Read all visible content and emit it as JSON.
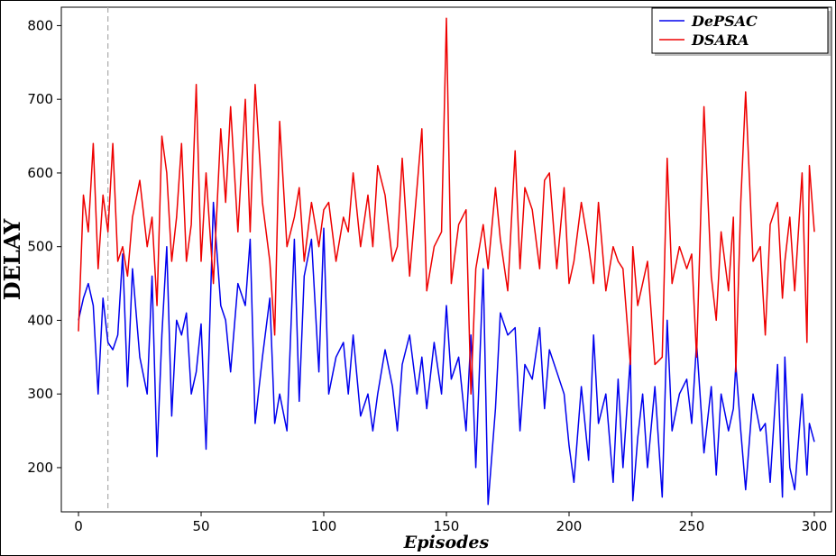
{
  "chart_data": {
    "type": "line",
    "xlabel": "Episodes",
    "ylabel": "DELAY",
    "xlim": [
      -7,
      307
    ],
    "ylim": [
      140,
      825
    ],
    "xticks": [
      0,
      50,
      100,
      150,
      200,
      250,
      300
    ],
    "yticks": [
      200,
      300,
      400,
      500,
      600,
      700,
      800
    ],
    "grid": false,
    "legend_position": "top-right",
    "reference_line": {
      "x": 12,
      "style": "dashed",
      "color": "#aaaaaa"
    },
    "series": [
      {
        "name": "DePSAC",
        "color": "#0000ee",
        "x": [
          0,
          2,
          4,
          6,
          8,
          10,
          12,
          14,
          16,
          18,
          20,
          22,
          25,
          28,
          30,
          32,
          34,
          36,
          38,
          40,
          42,
          44,
          46,
          48,
          50,
          52,
          55,
          58,
          60,
          62,
          65,
          68,
          70,
          72,
          75,
          78,
          80,
          82,
          85,
          88,
          90,
          92,
          95,
          98,
          100,
          102,
          105,
          108,
          110,
          112,
          115,
          118,
          120,
          122,
          125,
          128,
          130,
          132,
          135,
          138,
          140,
          142,
          145,
          148,
          150,
          152,
          155,
          158,
          160,
          162,
          165,
          167,
          170,
          172,
          175,
          178,
          180,
          182,
          185,
          188,
          190,
          192,
          195,
          198,
          200,
          202,
          205,
          208,
          210,
          212,
          215,
          218,
          220,
          222,
          225,
          226,
          228,
          230,
          232,
          235,
          238,
          240,
          242,
          245,
          248,
          250,
          252,
          255,
          258,
          260,
          262,
          265,
          267,
          268,
          270,
          272,
          275,
          278,
          280,
          282,
          285,
          287,
          288,
          290,
          292,
          295,
          297,
          298,
          300
        ],
        "y": [
          400,
          430,
          450,
          420,
          300,
          430,
          370,
          360,
          380,
          490,
          310,
          470,
          350,
          300,
          460,
          215,
          380,
          500,
          270,
          400,
          380,
          410,
          300,
          330,
          395,
          225,
          560,
          420,
          400,
          330,
          450,
          420,
          510,
          260,
          350,
          430,
          260,
          300,
          250,
          510,
          290,
          460,
          510,
          330,
          525,
          300,
          350,
          370,
          300,
          380,
          270,
          300,
          250,
          300,
          360,
          310,
          250,
          340,
          380,
          300,
          350,
          280,
          370,
          300,
          420,
          320,
          350,
          250,
          380,
          200,
          470,
          150,
          280,
          410,
          380,
          390,
          250,
          340,
          320,
          390,
          280,
          360,
          330,
          300,
          230,
          180,
          310,
          210,
          380,
          260,
          300,
          180,
          320,
          200,
          350,
          155,
          240,
          300,
          200,
          310,
          160,
          400,
          250,
          300,
          320,
          260,
          370,
          220,
          310,
          190,
          300,
          250,
          280,
          340,
          250,
          170,
          300,
          250,
          260,
          180,
          340,
          160,
          350,
          200,
          170,
          300,
          190,
          260,
          235
        ]
      },
      {
        "name": "DSARA",
        "color": "#ee0000",
        "x": [
          0,
          2,
          4,
          6,
          8,
          10,
          12,
          14,
          16,
          18,
          20,
          22,
          25,
          28,
          30,
          32,
          34,
          36,
          38,
          40,
          42,
          44,
          46,
          48,
          50,
          52,
          55,
          58,
          60,
          62,
          65,
          68,
          70,
          72,
          75,
          78,
          80,
          82,
          85,
          88,
          90,
          92,
          95,
          98,
          100,
          102,
          105,
          108,
          110,
          112,
          115,
          118,
          120,
          122,
          125,
          128,
          130,
          132,
          135,
          138,
          140,
          142,
          145,
          148,
          150,
          152,
          155,
          158,
          160,
          162,
          165,
          167,
          170,
          172,
          175,
          178,
          180,
          182,
          185,
          188,
          190,
          192,
          195,
          198,
          200,
          202,
          205,
          208,
          210,
          212,
          215,
          218,
          220,
          222,
          225,
          226,
          228,
          230,
          232,
          235,
          238,
          240,
          242,
          245,
          248,
          250,
          252,
          255,
          258,
          260,
          262,
          265,
          267,
          268,
          270,
          272,
          275,
          278,
          280,
          282,
          285,
          287,
          288,
          290,
          292,
          295,
          297,
          298,
          300
        ],
        "y": [
          385,
          570,
          520,
          640,
          470,
          570,
          520,
          640,
          480,
          500,
          460,
          540,
          590,
          500,
          540,
          420,
          650,
          600,
          480,
          540,
          640,
          480,
          530,
          720,
          480,
          600,
          450,
          660,
          560,
          690,
          520,
          700,
          520,
          720,
          560,
          480,
          380,
          670,
          500,
          540,
          580,
          480,
          560,
          500,
          550,
          560,
          480,
          540,
          520,
          600,
          500,
          570,
          500,
          610,
          570,
          480,
          500,
          620,
          460,
          580,
          660,
          440,
          500,
          520,
          810,
          450,
          530,
          550,
          300,
          470,
          530,
          470,
          580,
          510,
          440,
          630,
          470,
          580,
          550,
          470,
          590,
          600,
          470,
          580,
          450,
          480,
          560,
          500,
          450,
          560,
          440,
          500,
          480,
          470,
          340,
          500,
          420,
          450,
          480,
          340,
          350,
          620,
          450,
          500,
          470,
          490,
          350,
          690,
          460,
          400,
          520,
          440,
          540,
          330,
          560,
          710,
          480,
          500,
          380,
          530,
          560,
          430,
          480,
          540,
          440,
          600,
          370,
          610,
          520
        ]
      }
    ]
  }
}
